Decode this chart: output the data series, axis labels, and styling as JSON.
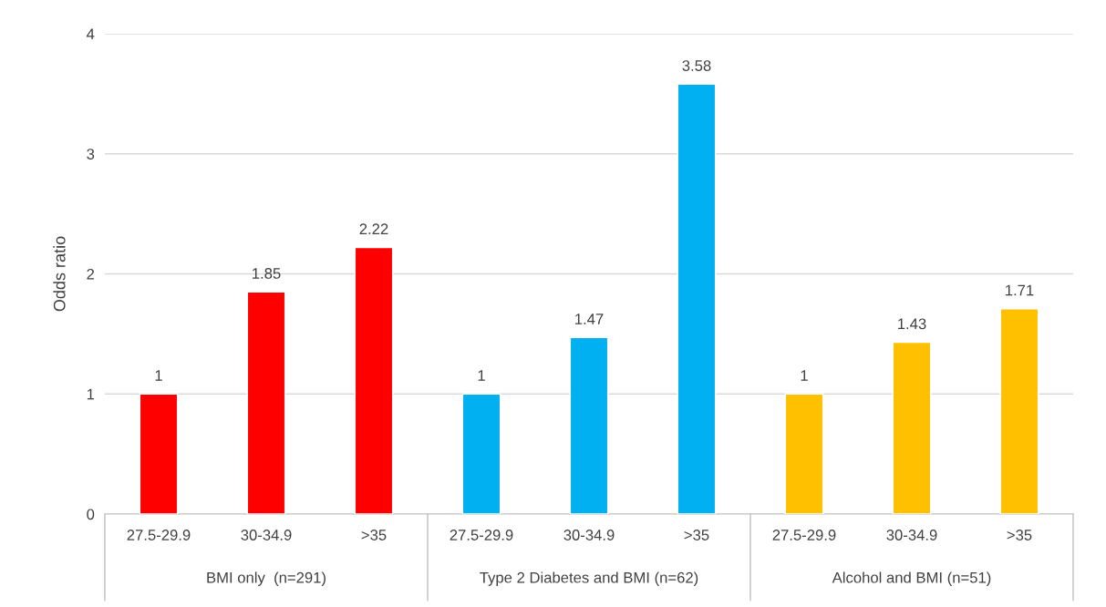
{
  "chart_data": {
    "type": "bar",
    "ylabel": "Odds ratio",
    "categories": [
      "27.5-29.9",
      "30-34.9",
      ">35",
      "27.5-29.9",
      "30-34.9",
      ">35",
      "27.5-29.9",
      "30-34.9",
      ">35"
    ],
    "values": [
      1,
      1.85,
      2.22,
      1,
      1.47,
      3.58,
      1,
      1.43,
      1.71
    ],
    "colors": [
      "#ff0000",
      "#ff0000",
      "#ff0000",
      "#00b0f0",
      "#00b0f0",
      "#00b0f0",
      "#ffc000",
      "#ffc000",
      "#ffc000"
    ],
    "annotations": [
      "BMI only  (n=291)",
      "Type 2 Diabetes and BMI (n=62)",
      "Alcohol and BMI (n=51)"
    ],
    "ylim": [
      0,
      4
    ],
    "yticks": [
      0,
      1,
      2,
      3,
      4
    ],
    "grid": "y",
    "data_labels": true
  }
}
